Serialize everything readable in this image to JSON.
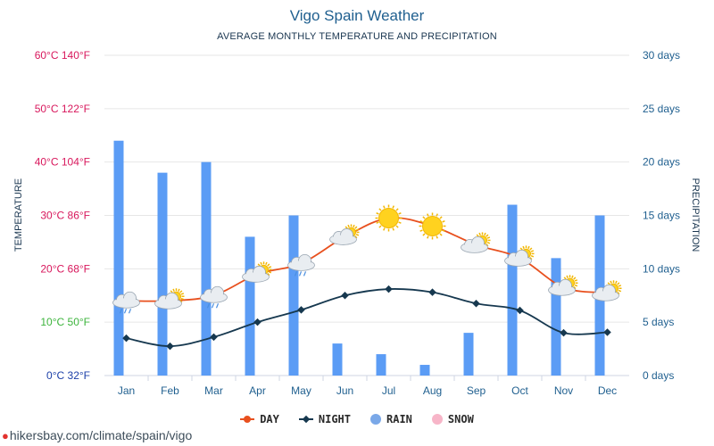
{
  "header": {
    "title": "Vigo Spain Weather",
    "subtitle": "AVERAGE MONTHLY TEMPERATURE AND PRECIPITATION"
  },
  "source_text": "hikersbay.com/climate/spain/vigo",
  "colors": {
    "day": "#e8501e",
    "night": "#16384f",
    "rain": "#5b9cf5",
    "snow": "#f7b5c8",
    "left_axis_hot": "#d8175c",
    "left_axis_mild": "#3cb43c",
    "left_axis_cold": "#1b3fa8",
    "right_axis": "#1f5f8f",
    "grid": "#e6e6e6"
  },
  "legend": [
    {
      "key": "day",
      "label": "DAY"
    },
    {
      "key": "night",
      "label": "NIGHT"
    },
    {
      "key": "rain",
      "label": "RAIN"
    },
    {
      "key": "snow",
      "label": "SNOW"
    }
  ],
  "chart_data": {
    "type": "line",
    "title": "Vigo Spain Weather",
    "subtitle": "AVERAGE MONTHLY TEMPERATURE AND PRECIPITATION",
    "categories": [
      "Jan",
      "Feb",
      "Mar",
      "Apr",
      "May",
      "Jun",
      "Jul",
      "Aug",
      "Sep",
      "Oct",
      "Nov",
      "Dec"
    ],
    "left_axis": {
      "label": "TEMPERATURE",
      "range": [
        0,
        60
      ],
      "ticks": [
        0,
        10,
        20,
        30,
        40,
        50,
        60
      ],
      "tick_labels": [
        "0°C 32°F",
        "10°C 50°F",
        "20°C 68°F",
        "30°C 86°F",
        "40°C 104°F",
        "50°C 122°F",
        "60°C 140°F"
      ]
    },
    "right_axis": {
      "label": "PRECIPITATION",
      "range": [
        0,
        30
      ],
      "ticks": [
        0,
        5,
        10,
        15,
        20,
        25,
        30
      ],
      "tick_labels": [
        "0 days",
        "5 days",
        "10 days",
        "15 days",
        "20 days",
        "25 days",
        "30 days"
      ]
    },
    "series": [
      {
        "name": "DAY",
        "axis": "left",
        "type": "line",
        "values": [
          14,
          14,
          15,
          19,
          21,
          26,
          29.5,
          28,
          24.5,
          22,
          16.5,
          15.5
        ]
      },
      {
        "name": "NIGHT",
        "axis": "left",
        "type": "line",
        "values": [
          7,
          5.5,
          7.2,
          10,
          12.3,
          15,
          16.2,
          15.6,
          13.5,
          12.2,
          8,
          8.1
        ]
      },
      {
        "name": "RAIN",
        "axis": "right",
        "type": "bar",
        "values": [
          22,
          19,
          20,
          13,
          15,
          3,
          2,
          1,
          4,
          16,
          11,
          15
        ]
      },
      {
        "name": "SNOW",
        "axis": "right",
        "type": "bar",
        "values": [
          0,
          0,
          0,
          0,
          0,
          0,
          0,
          0,
          0,
          0,
          0,
          0
        ]
      }
    ],
    "weather_icons": [
      "cloud-rain",
      "cloud-sun",
      "cloud-rain",
      "cloud-sun",
      "cloud-rain",
      "cloud-sun",
      "sun",
      "sun",
      "cloud-sun",
      "cloud-sun",
      "cloud-sun",
      "cloud-sun"
    ],
    "grid": true,
    "legend_position": "bottom"
  }
}
